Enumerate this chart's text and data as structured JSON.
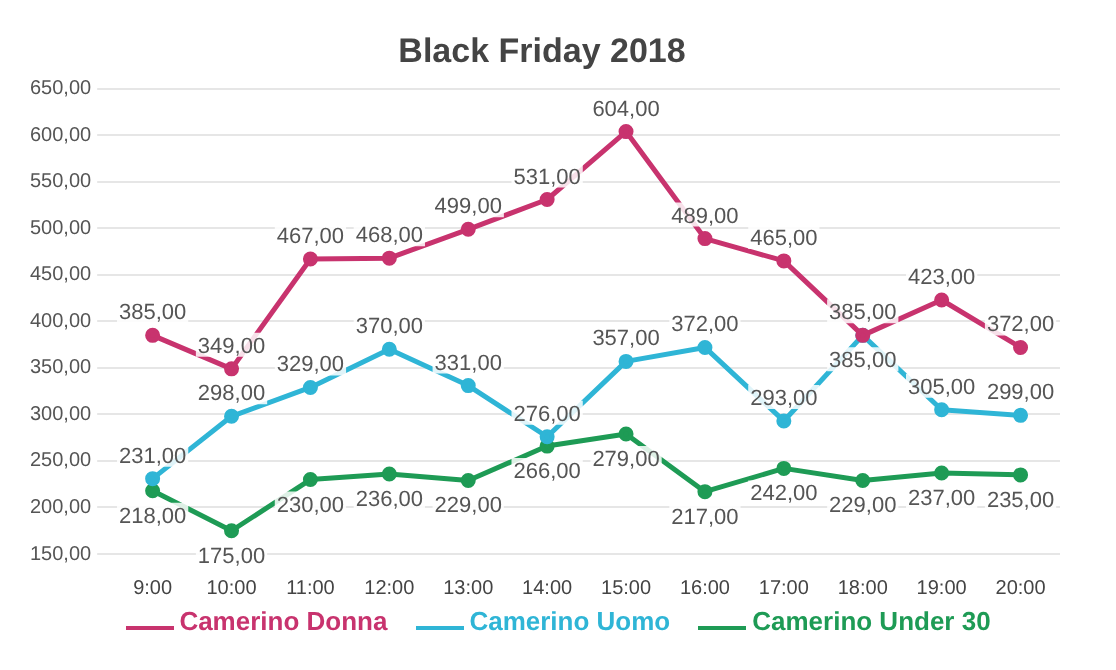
{
  "chart_data": {
    "type": "line",
    "title": "Black Friday 2018",
    "categories": [
      "9:00",
      "10:00",
      "11:00",
      "12:00",
      "13:00",
      "14:00",
      "15:00",
      "16:00",
      "17:00",
      "18:00",
      "19:00",
      "20:00"
    ],
    "series": [
      {
        "name": "Camerino Donna",
        "color": "#c8336e",
        "values": [
          385,
          349,
          467,
          468,
          499,
          531,
          604,
          489,
          465,
          385,
          423,
          372
        ],
        "value_labels": [
          "385,00",
          "349,00",
          "467,00",
          "468,00",
          "499,00",
          "531,00",
          "604,00",
          "489,00",
          "465,00",
          "385,00",
          "423,00",
          "372,00"
        ]
      },
      {
        "name": "Camerino Uomo",
        "color": "#2fb5d6",
        "values": [
          231,
          298,
          329,
          370,
          331,
          276,
          357,
          372,
          293,
          385,
          305,
          299
        ],
        "value_labels": [
          "231,00",
          "298,00",
          "329,00",
          "370,00",
          "331,00",
          "276,00",
          "357,00",
          "372,00",
          "293,00",
          "385,00",
          "305,00",
          "299,00"
        ]
      },
      {
        "name": "Camerino Under 30",
        "color": "#1e9b55",
        "values": [
          218,
          175,
          230,
          236,
          229,
          266,
          279,
          217,
          242,
          229,
          237,
          235
        ],
        "value_labels": [
          "218,00",
          "175,00",
          "230,00",
          "236,00",
          "229,00",
          "266,00",
          "279,00",
          "217,00",
          "242,00",
          "229,00",
          "237,00",
          "235,00"
        ]
      }
    ],
    "ylim": [
      150,
      650
    ],
    "yticks": [
      {
        "value": 150,
        "label": "150,00"
      },
      {
        "value": 200,
        "label": "200,00"
      },
      {
        "value": 250,
        "label": "250,00"
      },
      {
        "value": 300,
        "label": "300,00"
      },
      {
        "value": 350,
        "label": "350,00"
      },
      {
        "value": 400,
        "label": "400,00"
      },
      {
        "value": 450,
        "label": "450,00"
      },
      {
        "value": 500,
        "label": "500,00"
      },
      {
        "value": 550,
        "label": "550,00"
      },
      {
        "value": 600,
        "label": "600,00"
      },
      {
        "value": 650,
        "label": "650,00"
      }
    ],
    "grid": "y",
    "legend": "bottom",
    "marker": "circle",
    "line_style": "solid"
  }
}
